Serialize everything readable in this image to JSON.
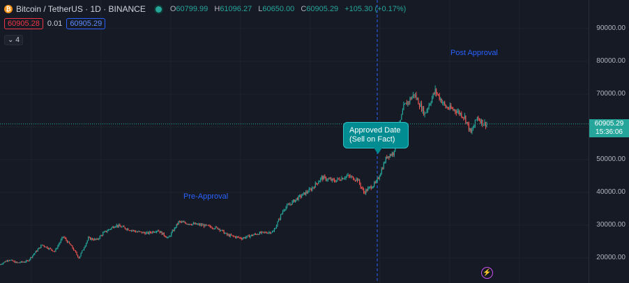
{
  "header": {
    "logo_glyph": "₿",
    "title": "Bitcoin / TetherUS · 1D · BINANCE",
    "ohlc": {
      "o_label": "O",
      "o_value": "60799.99",
      "h_label": "H",
      "h_value": "61096.27",
      "l_label": "L",
      "l_value": "60650.00",
      "c_label": "C",
      "c_value": "60905.29",
      "change": "+105.30 (+0.17%)"
    }
  },
  "order": {
    "bid": "60905.28",
    "spread": "0.01",
    "ask": "60905.29"
  },
  "collapse": {
    "glyph": "⌄",
    "count": "4"
  },
  "annotations": {
    "pre": "Pre-Approval",
    "post": "Post Approval",
    "callout_line1": "Approved Date",
    "callout_line2": "(Sell on Fact)"
  },
  "last_price": {
    "price": "60905.29",
    "countdown": "15:36:06"
  },
  "bolt_glyph": "⚡",
  "colors": {
    "background": "#161a25",
    "up": "#26a69a",
    "down": "#ef5350",
    "accent_blue": "#2962ff",
    "callout": "#008c91"
  },
  "chart_data": {
    "type": "candlestick",
    "y_axis_ticks": [
      "90000.00",
      "80000.00",
      "70000.00",
      "60000.00",
      "50000.00",
      "40000.00",
      "30000.00",
      "20000.00"
    ],
    "ylim": [
      15000,
      97000
    ],
    "last_price": 60905.29,
    "event_line": "Approved Date (Sell on Fact)",
    "price_path": [
      [
        18000,
        0
      ],
      [
        19500,
        8
      ],
      [
        18500,
        16
      ],
      [
        19000,
        26
      ],
      [
        24000,
        40
      ],
      [
        22000,
        52
      ],
      [
        26500,
        60
      ],
      [
        23500,
        68
      ],
      [
        20000,
        75
      ],
      [
        26000,
        84
      ],
      [
        25500,
        92
      ],
      [
        27500,
        98
      ],
      [
        30000,
        110
      ],
      [
        29000,
        120
      ],
      [
        28000,
        130
      ],
      [
        27500,
        140
      ],
      [
        28500,
        150
      ],
      [
        26000,
        160
      ],
      [
        31000,
        170
      ],
      [
        30500,
        180
      ],
      [
        30000,
        192
      ],
      [
        29000,
        208
      ],
      [
        27000,
        216
      ],
      [
        26000,
        230
      ],
      [
        27500,
        246
      ],
      [
        28000,
        260
      ],
      [
        35000,
        270
      ],
      [
        38000,
        282
      ],
      [
        41000,
        296
      ],
      [
        44500,
        306
      ],
      [
        43500,
        318
      ],
      [
        45000,
        330
      ],
      [
        44000,
        340
      ],
      [
        40000,
        346
      ],
      [
        43000,
        358
      ],
      [
        51000,
        368
      ],
      [
        52000,
        374
      ],
      [
        66000,
        384
      ],
      [
        70000,
        394
      ],
      [
        64000,
        404
      ],
      [
        71000,
        414
      ],
      [
        66000,
        424
      ],
      [
        65000,
        434
      ],
      [
        63000,
        442
      ],
      [
        58000,
        448
      ],
      [
        63000,
        454
      ],
      [
        61000,
        460
      ],
      [
        60905,
        463
      ]
    ]
  }
}
